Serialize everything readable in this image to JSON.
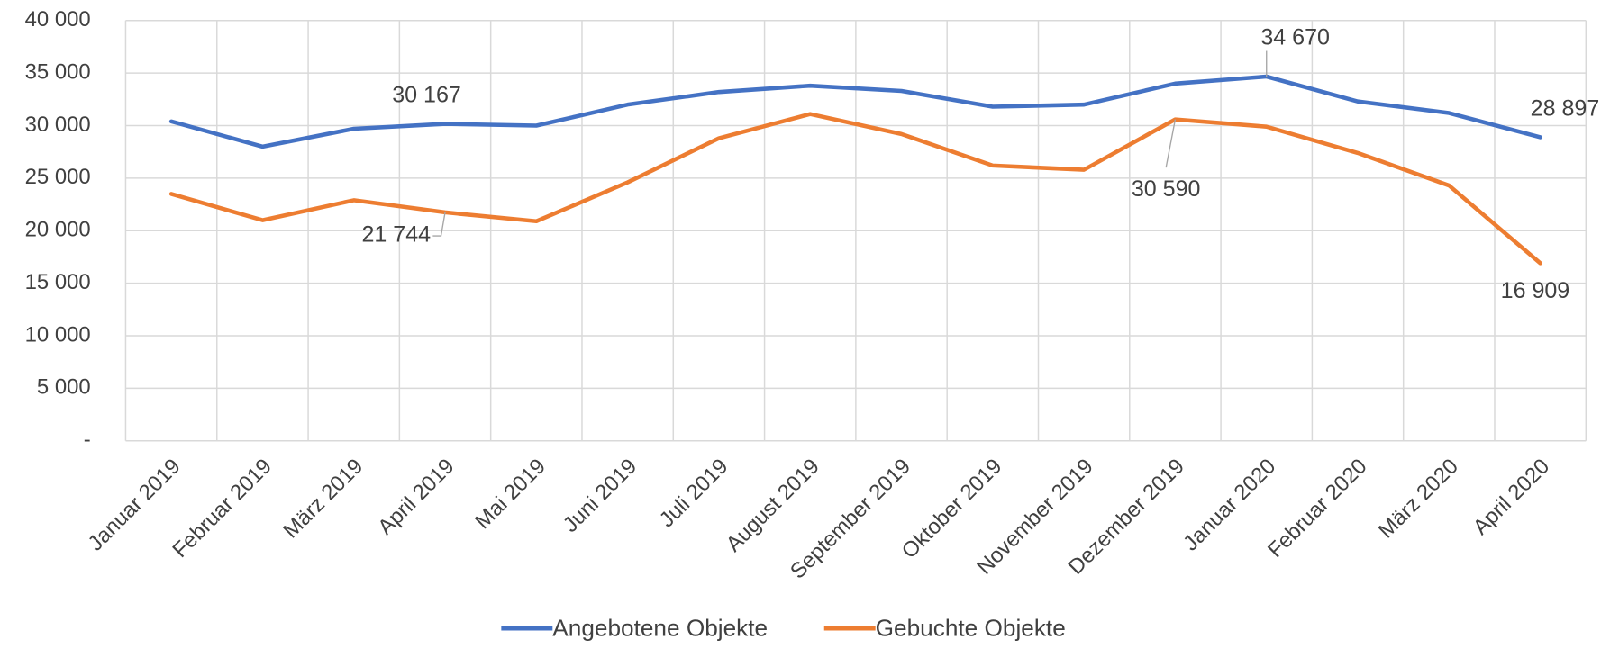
{
  "chart_data": {
    "type": "line",
    "categories": [
      "Januar 2019",
      "Februar 2019",
      "März 2019",
      "April 2019",
      "Mai 2019",
      "Juni 2019",
      "Juli 2019",
      "August 2019",
      "September 2019",
      "Oktober 2019",
      "November 2019",
      "Dezember 2019",
      "Januar 2020",
      "Februar 2020",
      "März 2020",
      "April 2020"
    ],
    "series": [
      {
        "name": "Angebotene Objekte",
        "color": "#4472c4",
        "values": [
          30400,
          28000,
          29700,
          30167,
          30000,
          32000,
          33200,
          33800,
          33300,
          31800,
          32000,
          34000,
          34670,
          32300,
          31200,
          28897
        ],
        "value_labels": [
          null,
          null,
          null,
          "30 167",
          null,
          null,
          null,
          null,
          null,
          null,
          null,
          null,
          "34 670",
          null,
          null,
          "28 897"
        ]
      },
      {
        "name": "Gebuchte Objekte",
        "color": "#ed7d31",
        "values": [
          23500,
          21000,
          22900,
          21744,
          20900,
          24600,
          28800,
          31100,
          29200,
          26200,
          25800,
          30590,
          29900,
          27400,
          24300,
          16909
        ],
        "value_labels": [
          null,
          null,
          null,
          "21 744",
          null,
          null,
          null,
          null,
          null,
          null,
          null,
          "30 590",
          null,
          null,
          null,
          "16 909"
        ]
      }
    ],
    "ylim": [
      0,
      40000
    ],
    "yticks": [
      {
        "value": 0,
        "label": "-"
      },
      {
        "value": 5000,
        "label": "5 000"
      },
      {
        "value": 10000,
        "label": "10 000"
      },
      {
        "value": 15000,
        "label": "15 000"
      },
      {
        "value": 20000,
        "label": "20 000"
      },
      {
        "value": 25000,
        "label": "25 000"
      },
      {
        "value": 30000,
        "label": "30 000"
      },
      {
        "value": 35000,
        "label": "35 000"
      },
      {
        "value": 40000,
        "label": "40 000"
      }
    ],
    "grid": true,
    "legend": "bottom"
  }
}
